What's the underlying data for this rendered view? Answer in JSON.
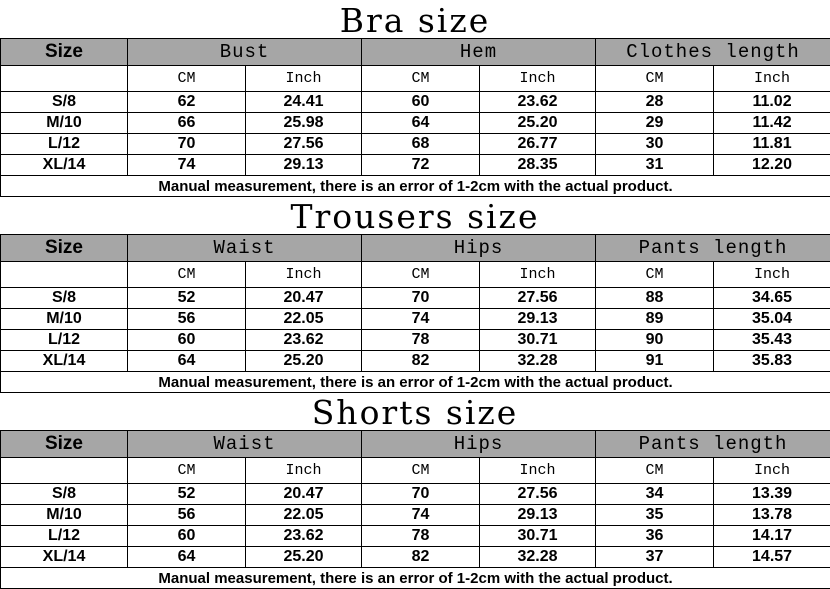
{
  "unit_labels": {
    "cm": "CM",
    "inch": "Inch"
  },
  "size_header": "Size",
  "sections": [
    {
      "title": "Bra size",
      "groups": [
        "Bust",
        "Hem",
        "Clothes length"
      ],
      "rows": [
        [
          "S/8",
          "62",
          "24.41",
          "60",
          "23.62",
          "28",
          "11.02"
        ],
        [
          "M/10",
          "66",
          "25.98",
          "64",
          "25.20",
          "29",
          "11.42"
        ],
        [
          "L/12",
          "70",
          "27.56",
          "68",
          "26.77",
          "30",
          "11.81"
        ],
        [
          "XL/14",
          "74",
          "29.13",
          "72",
          "28.35",
          "31",
          "12.20"
        ]
      ],
      "note": "Manual measurement, there is an error of 1-2cm with the actual product."
    },
    {
      "title": "Trousers size",
      "groups": [
        "Waist",
        "Hips",
        "Pants length"
      ],
      "rows": [
        [
          "S/8",
          "52",
          "20.47",
          "70",
          "27.56",
          "88",
          "34.65"
        ],
        [
          "M/10",
          "56",
          "22.05",
          "74",
          "29.13",
          "89",
          "35.04"
        ],
        [
          "L/12",
          "60",
          "23.62",
          "78",
          "30.71",
          "90",
          "35.43"
        ],
        [
          "XL/14",
          "64",
          "25.20",
          "82",
          "32.28",
          "91",
          "35.83"
        ]
      ],
      "note": "Manual measurement, there is an error of 1-2cm with the actual product."
    },
    {
      "title": "Shorts size",
      "groups": [
        "Waist",
        "Hips",
        "Pants length"
      ],
      "rows": [
        [
          "S/8",
          "52",
          "20.47",
          "70",
          "27.56",
          "34",
          "13.39"
        ],
        [
          "M/10",
          "56",
          "22.05",
          "74",
          "29.13",
          "35",
          "13.78"
        ],
        [
          "L/12",
          "60",
          "23.62",
          "78",
          "30.71",
          "36",
          "14.17"
        ],
        [
          "XL/14",
          "64",
          "25.20",
          "82",
          "32.28",
          "37",
          "14.57"
        ]
      ],
      "note": "Manual measurement, there is an error of 1-2cm with the actual product."
    }
  ],
  "colors": {
    "header_bg": "#a6a6a6",
    "border": "#000000"
  }
}
